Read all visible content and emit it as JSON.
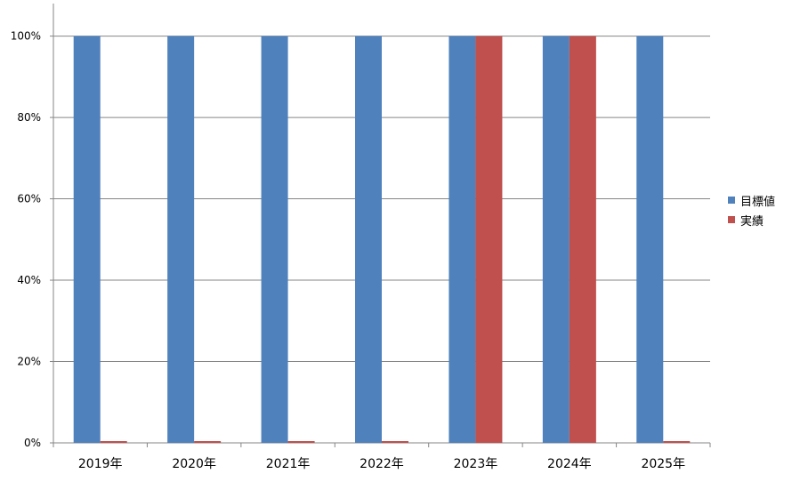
{
  "chart_data": {
    "type": "bar",
    "categories": [
      "2019年",
      "2020年",
      "2021年",
      "2022年",
      "2023年",
      "2024年",
      "2025年"
    ],
    "series": [
      {
        "name": "目標値",
        "color": "#4f81bd",
        "values": [
          100,
          100,
          100,
          100,
          100,
          100,
          100
        ]
      },
      {
        "name": "実績",
        "color": "#c0504d",
        "values": [
          0,
          0,
          0,
          0,
          100,
          100,
          0
        ]
      }
    ],
    "yticks": [
      "0%",
      "20%",
      "40%",
      "60%",
      "80%",
      "100%"
    ],
    "ylim": [
      0,
      108
    ],
    "grid": true,
    "legend_position": "right"
  }
}
